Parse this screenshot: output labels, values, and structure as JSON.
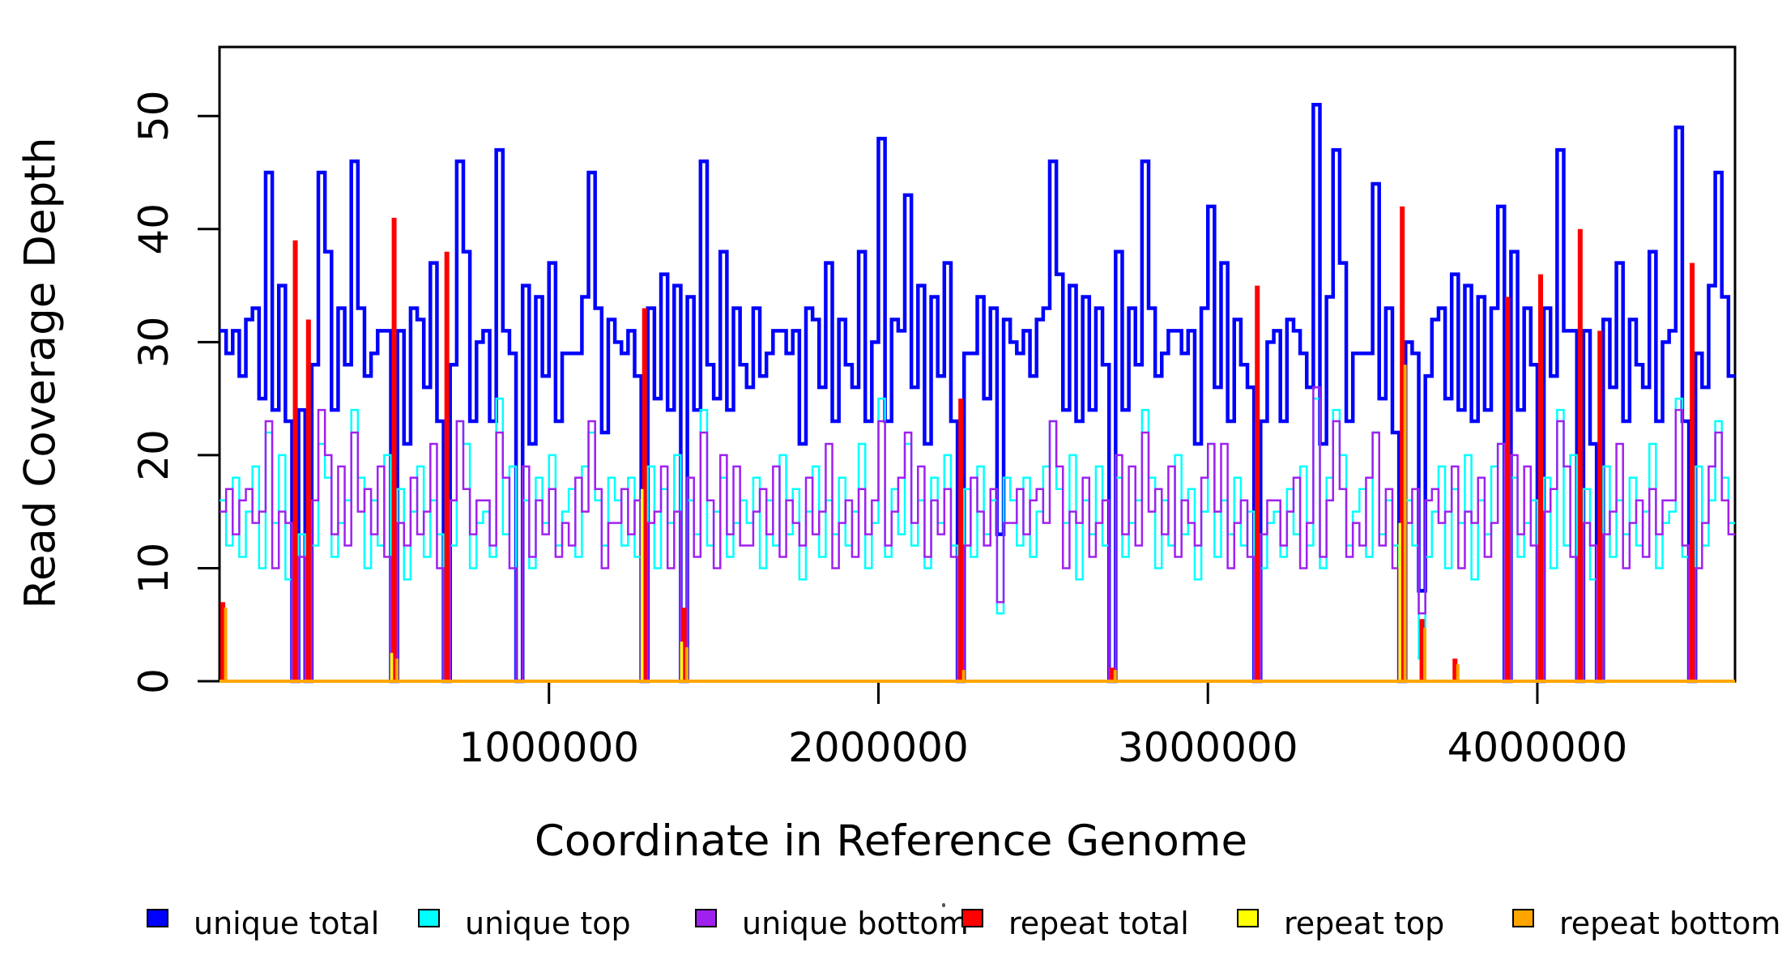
{
  "chart_data": {
    "type": "line",
    "subtype": "step-coverage",
    "title": "",
    "xlabel": "Coordinate in Reference Genome",
    "ylabel": "Read Coverage Depth",
    "xlim": [
      0,
      4600000
    ],
    "ylim": [
      0,
      56
    ],
    "grid": false,
    "legend_position": "bottom",
    "x_step": 20000,
    "x_ticks": [
      {
        "value": 1000000,
        "label": "1000000"
      },
      {
        "value": 2000000,
        "label": "2000000"
      },
      {
        "value": 3000000,
        "label": "3000000"
      },
      {
        "value": 4000000,
        "label": "4000000"
      }
    ],
    "y_ticks": [
      {
        "value": 0,
        "label": "0"
      },
      {
        "value": 10,
        "label": "10"
      },
      {
        "value": 20,
        "label": "20"
      },
      {
        "value": 30,
        "label": "30"
      },
      {
        "value": 40,
        "label": "40"
      },
      {
        "value": 50,
        "label": "50"
      }
    ],
    "series": [
      {
        "name": "unique total",
        "color": "#0000FF",
        "width": 4.5,
        "values": [
          31,
          29,
          31,
          27,
          32,
          33,
          25,
          45,
          24,
          35,
          23,
          0,
          24,
          0,
          28,
          45,
          38,
          24,
          33,
          28,
          46,
          33,
          27,
          29,
          31,
          31,
          0,
          31,
          21,
          33,
          32,
          26,
          37,
          23,
          0,
          28,
          46,
          38,
          23,
          30,
          31,
          23,
          47,
          31,
          29,
          0,
          35,
          21,
          34,
          27,
          37,
          23,
          29,
          29,
          29,
          34,
          45,
          33,
          22,
          32,
          30,
          29,
          31,
          27,
          0,
          33,
          25,
          36,
          24,
          35,
          0,
          34,
          24,
          46,
          28,
          25,
          38,
          24,
          33,
          28,
          26,
          33,
          27,
          29,
          31,
          31,
          29,
          31,
          21,
          33,
          32,
          26,
          37,
          23,
          32,
          28,
          26,
          38,
          23,
          30,
          48,
          23,
          32,
          31,
          43,
          26,
          35,
          21,
          34,
          27,
          37,
          23,
          0,
          29,
          29,
          34,
          25,
          33,
          13,
          32,
          30,
          29,
          31,
          27,
          32,
          33,
          46,
          36,
          24,
          35,
          23,
          34,
          24,
          33,
          28,
          0,
          38,
          24,
          33,
          28,
          46,
          33,
          27,
          29,
          31,
          31,
          29,
          31,
          21,
          33,
          42,
          26,
          37,
          23,
          32,
          28,
          26,
          0,
          23,
          30,
          31,
          23,
          32,
          31,
          29,
          26,
          51,
          21,
          34,
          47,
          37,
          23,
          29,
          29,
          29,
          44,
          25,
          33,
          22,
          0,
          30,
          29,
          8,
          27,
          32,
          33,
          25,
          36,
          24,
          35,
          23,
          34,
          24,
          33,
          42,
          0,
          38,
          24,
          33,
          28,
          0,
          33,
          27,
          47,
          31,
          31,
          0,
          31,
          21,
          0,
          32,
          26,
          37,
          23,
          32,
          28,
          26,
          38,
          23,
          30,
          31,
          49,
          23,
          0,
          29,
          26,
          35,
          45,
          34,
          27
        ]
      },
      {
        "name": "unique top",
        "color": "#00FFFF",
        "width": 2.5,
        "values": [
          16,
          12,
          18,
          11,
          15,
          19,
          10,
          22,
          14,
          20,
          9,
          0,
          13,
          0,
          12,
          21,
          18,
          11,
          14,
          16,
          24,
          18,
          10,
          16,
          12,
          20,
          0,
          17,
          9,
          15,
          19,
          11,
          16,
          13,
          0,
          12,
          23,
          21,
          10,
          14,
          15,
          11,
          25,
          13,
          19,
          0,
          16,
          10,
          18,
          14,
          20,
          12,
          15,
          17,
          11,
          19,
          22,
          16,
          12,
          18,
          16,
          12,
          18,
          11,
          0,
          19,
          10,
          17,
          14,
          20,
          0,
          16,
          13,
          24,
          12,
          15,
          18,
          11,
          14,
          16,
          14,
          18,
          10,
          16,
          12,
          20,
          13,
          17,
          9,
          15,
          19,
          11,
          16,
          13,
          18,
          12,
          15,
          21,
          10,
          14,
          25,
          11,
          17,
          13,
          21,
          12,
          16,
          10,
          18,
          14,
          20,
          12,
          0,
          17,
          11,
          19,
          13,
          16,
          6,
          18,
          16,
          12,
          18,
          11,
          15,
          19,
          23,
          17,
          14,
          20,
          9,
          16,
          13,
          19,
          12,
          0,
          18,
          11,
          14,
          16,
          24,
          18,
          10,
          16,
          12,
          20,
          13,
          17,
          9,
          15,
          21,
          11,
          16,
          13,
          18,
          12,
          15,
          0,
          10,
          14,
          15,
          11,
          17,
          13,
          19,
          12,
          25,
          10,
          18,
          24,
          20,
          12,
          15,
          17,
          11,
          22,
          13,
          16,
          12,
          0,
          16,
          12,
          2,
          11,
          15,
          19,
          10,
          17,
          14,
          20,
          9,
          16,
          13,
          19,
          21,
          0,
          18,
          11,
          14,
          16,
          0,
          18,
          10,
          24,
          12,
          20,
          0,
          17,
          9,
          0,
          19,
          11,
          16,
          13,
          18,
          12,
          15,
          21,
          10,
          14,
          15,
          25,
          11,
          0,
          19,
          12,
          16,
          23,
          18,
          14
        ]
      },
      {
        "name": "unique bottom",
        "color": "#A020F0",
        "width": 2.5,
        "values": [
          15,
          17,
          13,
          16,
          17,
          14,
          15,
          23,
          10,
          15,
          14,
          0,
          11,
          0,
          16,
          24,
          20,
          13,
          19,
          12,
          22,
          15,
          17,
          13,
          19,
          11,
          0,
          14,
          12,
          18,
          13,
          15,
          21,
          10,
          0,
          16,
          23,
          17,
          13,
          16,
          16,
          12,
          22,
          18,
          10,
          0,
          19,
          11,
          16,
          13,
          17,
          11,
          14,
          12,
          18,
          15,
          23,
          17,
          10,
          14,
          14,
          17,
          13,
          16,
          0,
          14,
          15,
          19,
          10,
          15,
          0,
          18,
          11,
          22,
          16,
          10,
          20,
          13,
          19,
          12,
          12,
          15,
          17,
          13,
          19,
          11,
          16,
          14,
          12,
          18,
          13,
          15,
          21,
          10,
          14,
          16,
          11,
          17,
          13,
          16,
          23,
          12,
          15,
          18,
          22,
          14,
          19,
          11,
          16,
          13,
          17,
          11,
          0,
          12,
          18,
          15,
          12,
          17,
          7,
          14,
          14,
          17,
          13,
          16,
          17,
          14,
          23,
          19,
          10,
          15,
          14,
          18,
          11,
          14,
          16,
          0,
          20,
          13,
          19,
          12,
          22,
          15,
          17,
          13,
          19,
          11,
          16,
          14,
          12,
          18,
          21,
          15,
          21,
          10,
          14,
          16,
          11,
          0,
          13,
          16,
          16,
          12,
          15,
          18,
          10,
          14,
          26,
          11,
          16,
          23,
          17,
          11,
          14,
          12,
          18,
          22,
          12,
          17,
          10,
          0,
          14,
          17,
          6,
          16,
          17,
          14,
          15,
          19,
          10,
          15,
          14,
          18,
          11,
          14,
          21,
          0,
          20,
          13,
          19,
          12,
          0,
          15,
          17,
          23,
          19,
          11,
          0,
          14,
          12,
          0,
          13,
          15,
          21,
          10,
          14,
          16,
          11,
          17,
          13,
          16,
          16,
          24,
          12,
          0,
          10,
          14,
          19,
          22,
          16,
          13
        ]
      }
    ],
    "spike_series": [
      {
        "name": "repeat total",
        "color": "#FF0000",
        "width": 6,
        "offset": 0,
        "baseline": true,
        "spikes": [
          {
            "i": 0,
            "h": 7
          },
          {
            "i": 11,
            "h": 39
          },
          {
            "i": 13,
            "h": 32
          },
          {
            "i": 26,
            "h": 41
          },
          {
            "i": 34,
            "h": 38
          },
          {
            "i": 64,
            "h": 33
          },
          {
            "i": 70,
            "h": 6.5
          },
          {
            "i": 112,
            "h": 25
          },
          {
            "i": 135,
            "h": 1.2
          },
          {
            "i": 157,
            "h": 35
          },
          {
            "i": 179,
            "h": 42
          },
          {
            "i": 182,
            "h": 5.5
          },
          {
            "i": 187,
            "h": 2
          },
          {
            "i": 195,
            "h": 34
          },
          {
            "i": 200,
            "h": 36
          },
          {
            "i": 206,
            "h": 40
          },
          {
            "i": 209,
            "h": 31
          },
          {
            "i": 223,
            "h": 37
          }
        ]
      },
      {
        "name": "repeat top",
        "color": "#FFFF00",
        "width": 3.5,
        "offset": -3,
        "baseline": true,
        "spikes": [
          {
            "i": 26,
            "h": 2.5
          },
          {
            "i": 64,
            "h": 17
          },
          {
            "i": 70,
            "h": 3.5
          },
          {
            "i": 179,
            "h": 14
          }
        ]
      },
      {
        "name": "repeat bottom",
        "color": "#FFA500",
        "width": 4,
        "offset": 3.5,
        "baseline": true,
        "spikes": [
          {
            "i": 0,
            "h": 6.5
          },
          {
            "i": 26,
            "h": 2
          },
          {
            "i": 70,
            "h": 3
          },
          {
            "i": 112,
            "h": 1
          },
          {
            "i": 135,
            "h": 1
          },
          {
            "i": 179,
            "h": 28
          },
          {
            "i": 182,
            "h": 4.7
          },
          {
            "i": 187,
            "h": 1.5
          }
        ]
      }
    ],
    "legend": [
      {
        "label": "unique total",
        "color": "#0000FF"
      },
      {
        "label": "unique top",
        "color": "#00FFFF"
      },
      {
        "label": "unique bottom",
        "color": "#A020F0"
      },
      {
        "label": "repeat total",
        "color": "#FF0000"
      },
      {
        "label": "repeat top",
        "color": "#FFFF00"
      },
      {
        "label": "repeat bottom",
        "color": "#FFA500"
      }
    ]
  },
  "axis_color": "#000000"
}
